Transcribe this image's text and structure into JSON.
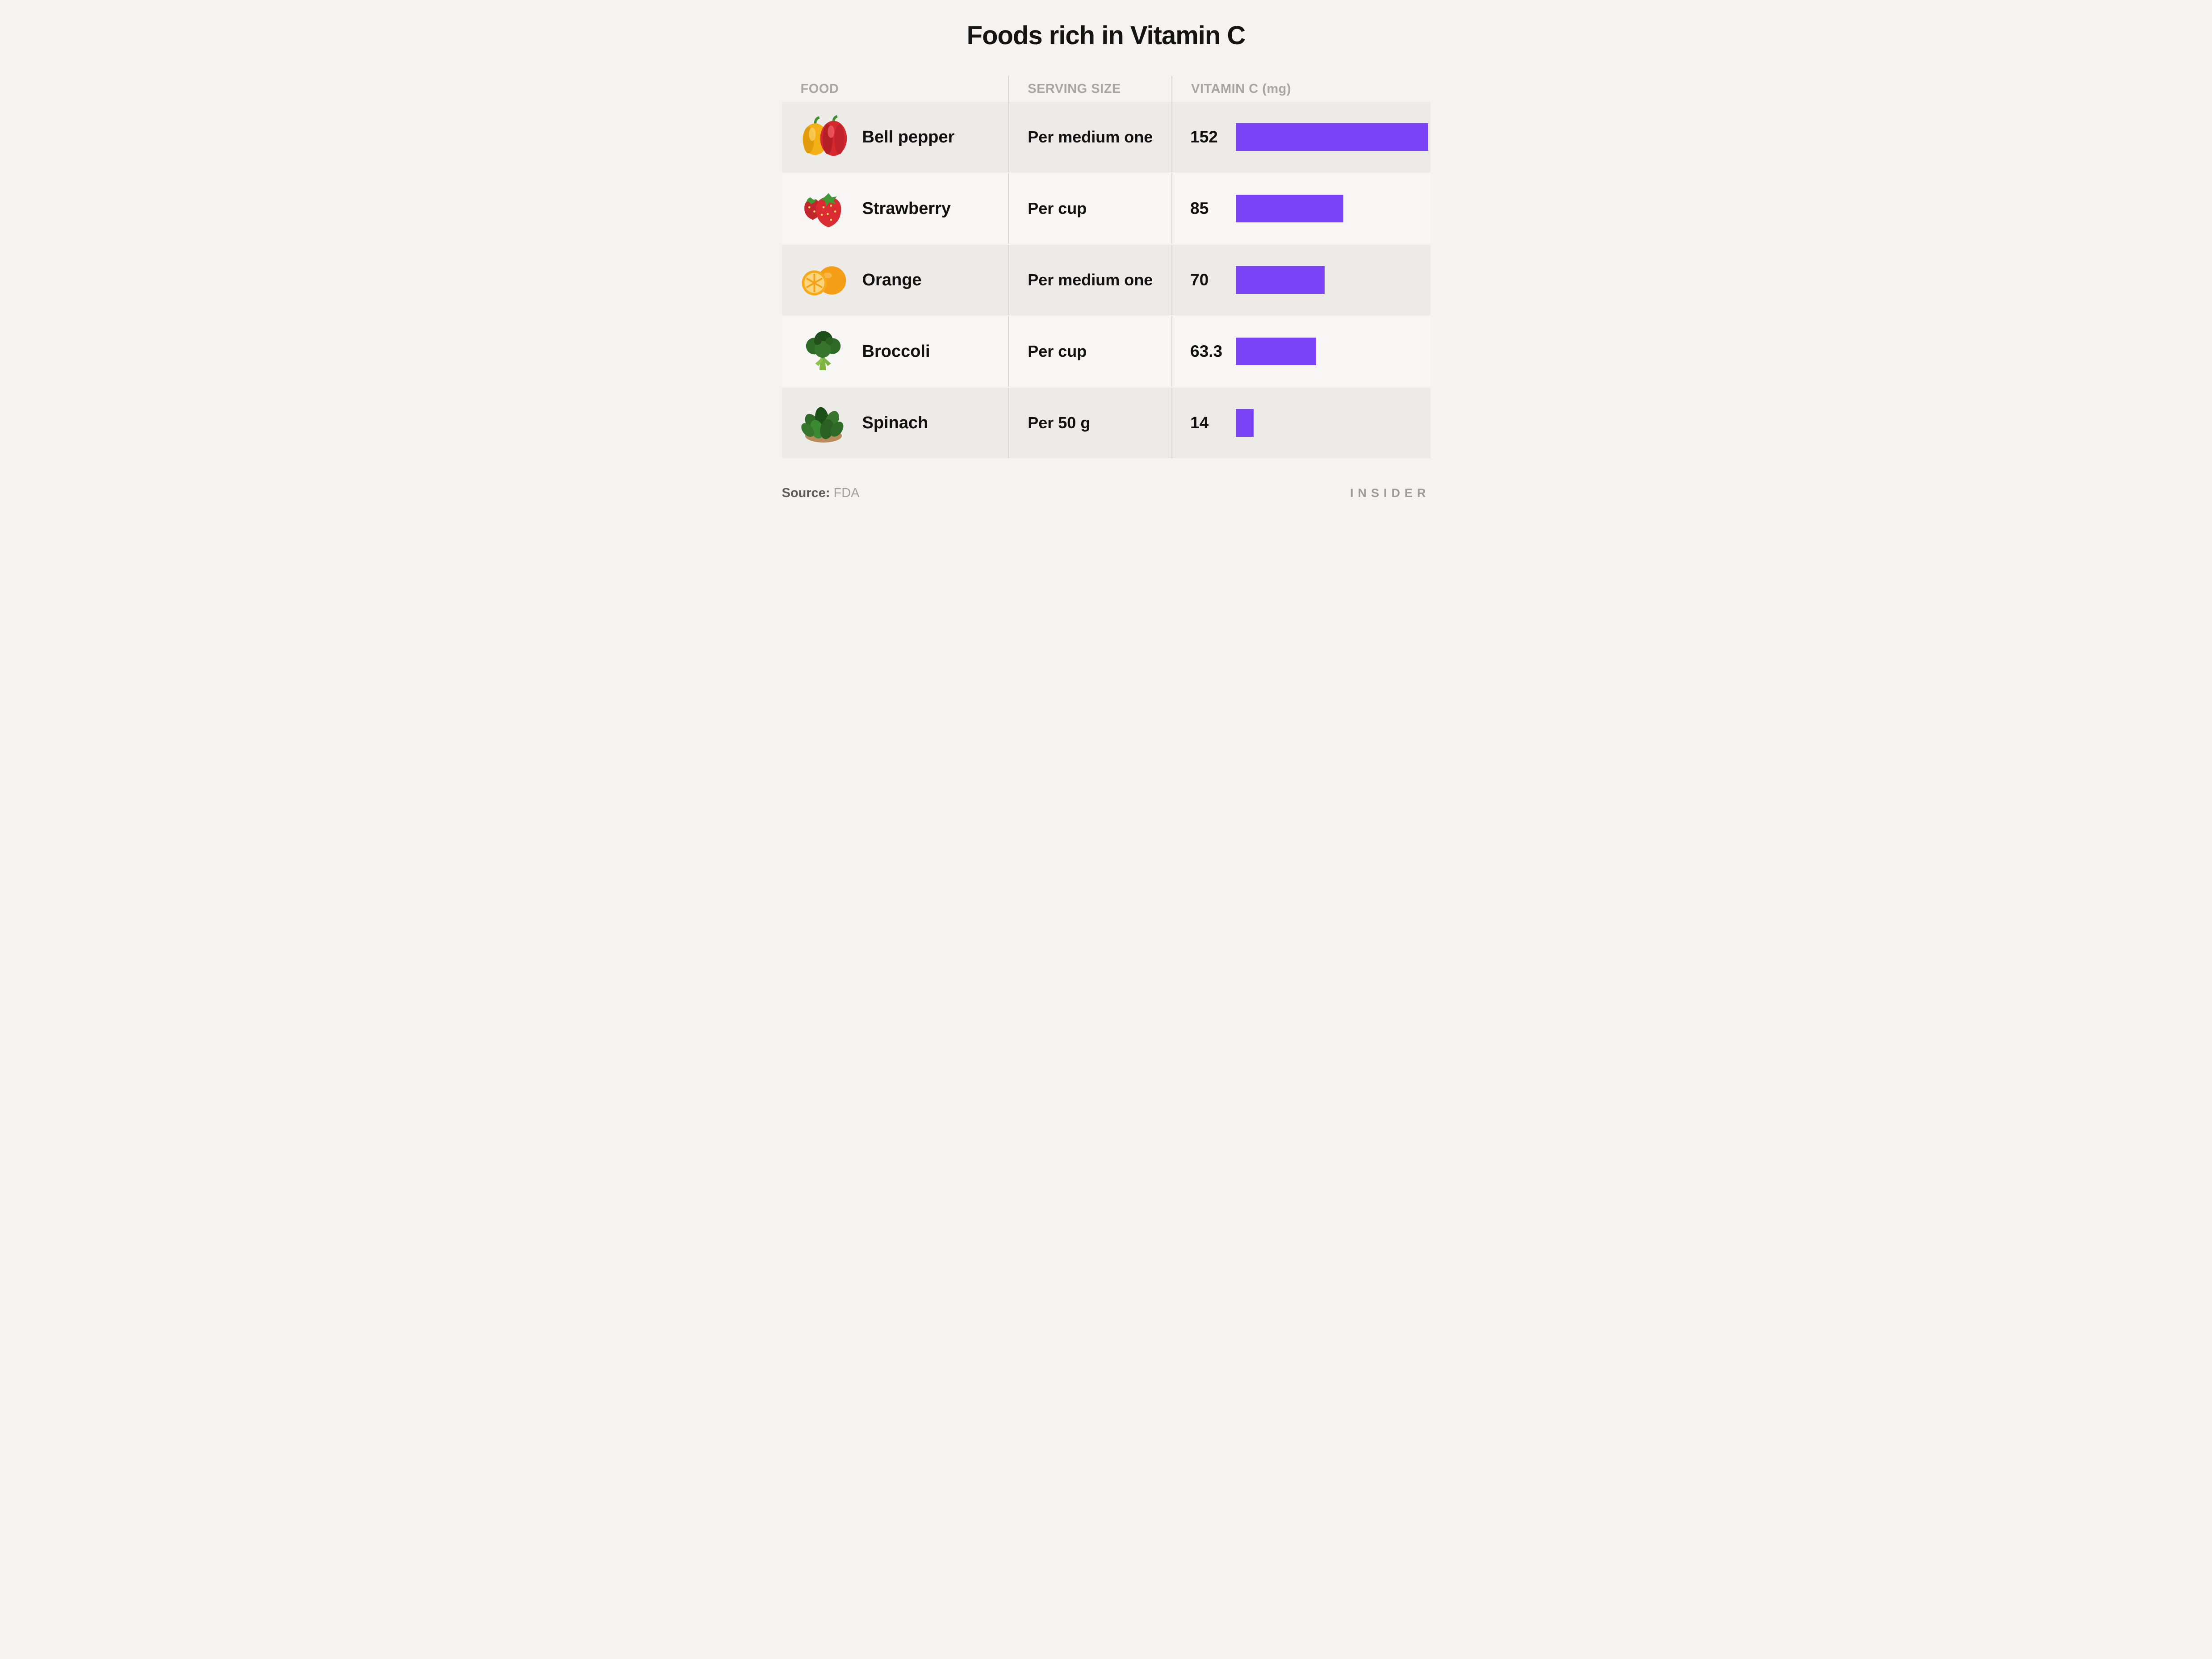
{
  "page": {
    "title": "Foods rich in Vitamin C",
    "source_label": "Source:",
    "source_value": "FDA",
    "brand": "INSIDER"
  },
  "chart_data": {
    "type": "bar",
    "orientation": "horizontal",
    "title": "Foods rich in Vitamin C",
    "columns": [
      "FOOD",
      "SERVING SIZE",
      "VITAMIN C (mg)"
    ],
    "categories": [
      "Bell pepper",
      "Strawberry",
      "Orange",
      "Broccoli",
      "Spinach"
    ],
    "serving_sizes": [
      "Per medium one",
      "Per cup",
      "Per medium one",
      "Per cup",
      "Per 50 g"
    ],
    "values": [
      152,
      85,
      70,
      63.3,
      14
    ],
    "value_labels": [
      "152",
      "85",
      "70",
      "63.3",
      "14"
    ],
    "icons": [
      "bell-pepper-image",
      "strawberry-image",
      "orange-image",
      "broccoli-image",
      "spinach-image"
    ],
    "xlim": [
      0,
      152
    ],
    "bar_color": "#7b42f6",
    "grid": false,
    "legend": false,
    "source": "FDA"
  }
}
